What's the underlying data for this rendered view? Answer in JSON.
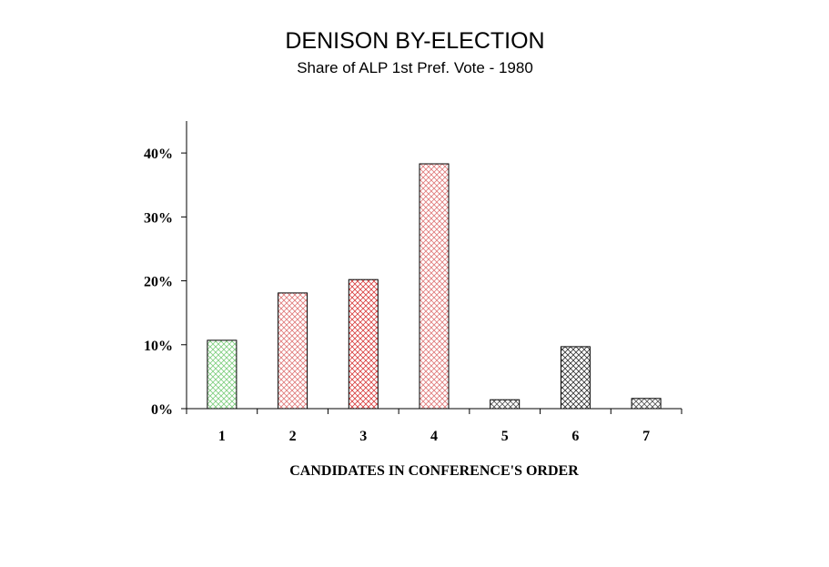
{
  "chart_data": {
    "type": "bar",
    "title": "DENISON BY-ELECTION",
    "subtitle": "Share of ALP 1st Pref. Vote - 1980",
    "xlabel": "CANDIDATES IN CONFERENCE'S ORDER",
    "ylabel": "",
    "categories": [
      "1",
      "2",
      "3",
      "4",
      "5",
      "6",
      "7"
    ],
    "values": [
      10.7,
      18.1,
      20.2,
      38.3,
      1.4,
      9.7,
      1.6
    ],
    "ylim": [
      0,
      45
    ],
    "yticks": [
      0,
      10,
      20,
      30,
      40
    ],
    "ytick_labels": [
      "0%",
      "10%",
      "20%",
      "30%",
      "40%"
    ],
    "grid": false,
    "legend": "none",
    "bar_colors": [
      "#7fcf7f",
      "#e07a7a",
      "#d94040",
      "#e07a7a",
      "#555555",
      "#333333",
      "#555555"
    ]
  }
}
